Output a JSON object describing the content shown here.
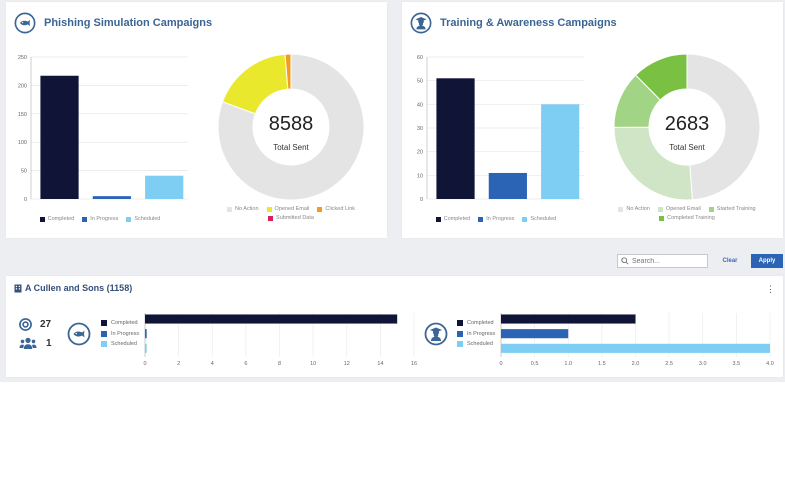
{
  "colors": {
    "completed": "#101437",
    "in_progress": "#2b64b4",
    "scheduled": "#7dcef2",
    "no_action": "#e4e4e4",
    "opened_email_phish": "#e9e82d",
    "clicked_link": "#f49b22",
    "submitted_data": "#d81f5a",
    "opened_email_train": "#cfe5c6",
    "started_training": "#a2d486",
    "completed_training": "#79c043",
    "title_blue": "#3b6594",
    "apply_blue": "#2b64b4"
  },
  "phishing": {
    "title": "Phishing Simulation Campaigns",
    "icon": "fish-icon",
    "total": "8588",
    "total_label": "Total Sent",
    "bar_legend": [
      "Completed",
      "In Progress",
      "Scheduled"
    ],
    "donut_legend": [
      "No Action",
      "Opened Email",
      "Clicked Link",
      "Submitted Data"
    ]
  },
  "training": {
    "title": "Training & Awareness Campaigns",
    "icon": "graduate-icon",
    "total": "2683",
    "total_label": "Total Sent",
    "bar_legend": [
      "Completed",
      "In Progress",
      "Scheduled"
    ],
    "donut_legend": [
      "No Action",
      "Opened Email",
      "Started Training",
      "Completed Training"
    ]
  },
  "filters": {
    "search_placeholder": "Search...",
    "clear_label": "Clear",
    "apply_label": "Apply"
  },
  "org": {
    "name": "A Cullen and Sons (1158)",
    "campaign_count": "27",
    "user_count": "1",
    "legend": [
      "Completed",
      "In Progress",
      "Scheduled"
    ]
  },
  "chart_data": [
    {
      "type": "bar",
      "categories": [
        "Completed",
        "In Progress",
        "Scheduled"
      ],
      "values": [
        217,
        5,
        41
      ],
      "ylim": [
        0,
        250
      ],
      "yticks": [
        0,
        50,
        100,
        150,
        200,
        250
      ],
      "grid": true
    },
    {
      "type": "pie",
      "labels": [
        "No Action",
        "Opened Email",
        "Clicked Link",
        "Submitted Data"
      ],
      "values": [
        6925,
        1551,
        112,
        0
      ],
      "center_text": "8588",
      "center_subtext": "Total Sent",
      "legend": "bottom"
    },
    {
      "type": "bar",
      "categories": [
        "Completed",
        "In Progress",
        "Scheduled"
      ],
      "values": [
        51,
        11,
        40
      ],
      "ylim": [
        0,
        60
      ],
      "yticks": [
        0,
        10,
        20,
        30,
        40,
        50,
        60
      ],
      "grid": true
    },
    {
      "type": "pie",
      "labels": [
        "No Action",
        "Opened Email",
        "Started Training",
        "Completed Training"
      ],
      "values": [
        1310,
        700,
        340,
        333
      ],
      "center_text": "2683",
      "center_subtext": "Total Sent",
      "legend": "bottom"
    },
    {
      "type": "bar",
      "orientation": "horizontal",
      "categories": [
        "Completed",
        "In Progress",
        "Scheduled"
      ],
      "values": [
        15,
        0.1,
        0.1
      ],
      "xlim": [
        0,
        16
      ],
      "xticks": [
        0,
        2,
        4,
        6,
        8,
        10,
        12,
        14,
        16
      ]
    },
    {
      "type": "bar",
      "orientation": "horizontal",
      "categories": [
        "Completed",
        "In Progress",
        "Scheduled"
      ],
      "values": [
        2,
        1,
        4
      ],
      "xlim": [
        0,
        4
      ],
      "xticks": [
        "0",
        "0.5",
        "1.0",
        "1.5",
        "2.0",
        "2.5",
        "3.0",
        "3.5",
        "4.0"
      ]
    }
  ]
}
